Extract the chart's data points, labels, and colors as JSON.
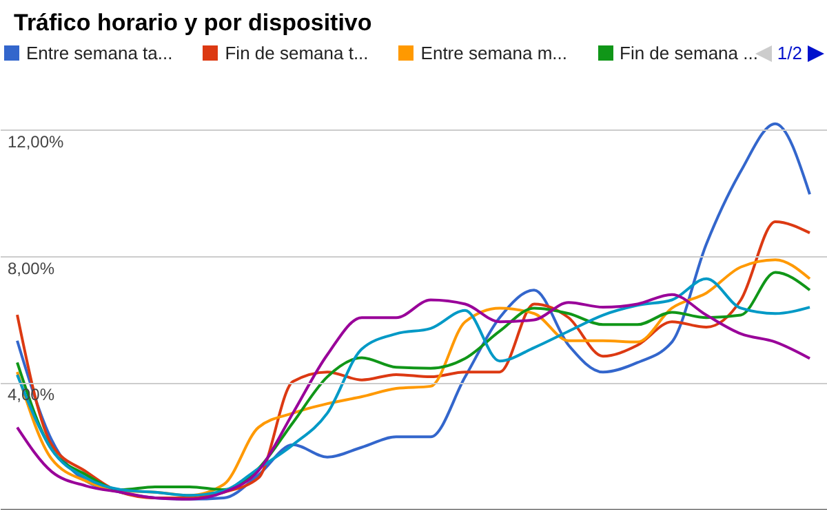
{
  "chart_data": {
    "type": "line",
    "title": "Tráfico horario y por dispositivo",
    "categories": [
      null,
      null,
      null,
      null,
      null,
      null,
      null,
      null,
      null,
      null,
      null,
      null,
      null,
      null,
      null,
      null,
      null,
      null,
      null,
      null,
      null,
      null,
      null,
      null
    ],
    "series": [
      {
        "name": "Entre semana ta...",
        "color": "#3366cc",
        "values": [
          5.34,
          2.2,
          0.9,
          0.55,
          0.37,
          0.33,
          0.37,
          1.1,
          2.05,
          1.66,
          1.97,
          2.3,
          2.3,
          4.2,
          6.07,
          6.94,
          5.2,
          4.35,
          4.65,
          5.3,
          8.4,
          10.7,
          12.2,
          9.97
        ]
      },
      {
        "name": "Fin de semana t...",
        "color": "#dc3912",
        "values": [
          6.16,
          2.05,
          1.2,
          0.55,
          0.37,
          0.37,
          0.55,
          1.0,
          4.05,
          4.35,
          4.1,
          4.27,
          4.2,
          4.35,
          4.35,
          6.5,
          6.07,
          4.85,
          5.2,
          5.94,
          5.77,
          6.63,
          9.1,
          8.75
        ]
      },
      {
        "name": "Entre semana m...",
        "color": "#ff9900",
        "values": [
          4.35,
          1.6,
          0.9,
          0.6,
          0.55,
          0.45,
          0.8,
          2.6,
          3.05,
          3.35,
          3.57,
          3.83,
          3.9,
          5.94,
          6.37,
          6.2,
          5.34,
          5.34,
          5.3,
          6.37,
          6.85,
          7.67,
          7.9,
          7.3
        ]
      },
      {
        "name": "Fin de semana ...",
        "color": "#109618",
        "values": [
          4.65,
          1.9,
          1.1,
          0.63,
          0.72,
          0.72,
          0.63,
          1.3,
          2.75,
          4.2,
          4.8,
          4.5,
          4.47,
          4.78,
          5.64,
          6.37,
          6.2,
          5.85,
          5.85,
          6.24,
          6.07,
          6.15,
          7.5,
          6.94
        ]
      },
      {
        "color": "#0099c6",
        "values": [
          4.26,
          1.9,
          1.0,
          0.63,
          0.55,
          0.45,
          0.6,
          1.3,
          2.05,
          3.05,
          5.08,
          5.56,
          5.73,
          6.3,
          4.7,
          5.12,
          5.64,
          6.15,
          6.46,
          6.63,
          7.3,
          6.37,
          6.2,
          6.4
        ]
      },
      {
        "color": "#990099",
        "values": [
          2.6,
          1.2,
          0.75,
          0.55,
          0.37,
          0.33,
          0.55,
          1.23,
          3.05,
          4.9,
          6.07,
          6.07,
          6.63,
          6.5,
          5.94,
          6.0,
          6.55,
          6.4,
          6.5,
          6.8,
          6.15,
          5.56,
          5.3,
          4.78
        ]
      }
    ],
    "ylim": [
      0,
      13.5
    ],
    "yticks": [
      {
        "value": 4,
        "label": "4,00%"
      },
      {
        "value": 8,
        "label": "8,00%"
      },
      {
        "value": 12,
        "label": "12,00%"
      }
    ],
    "grid": "y",
    "legend": "top",
    "tick_labels": "y",
    "line_style": "solid",
    "marker": "none",
    "annotations": [
      "1/2"
    ]
  }
}
